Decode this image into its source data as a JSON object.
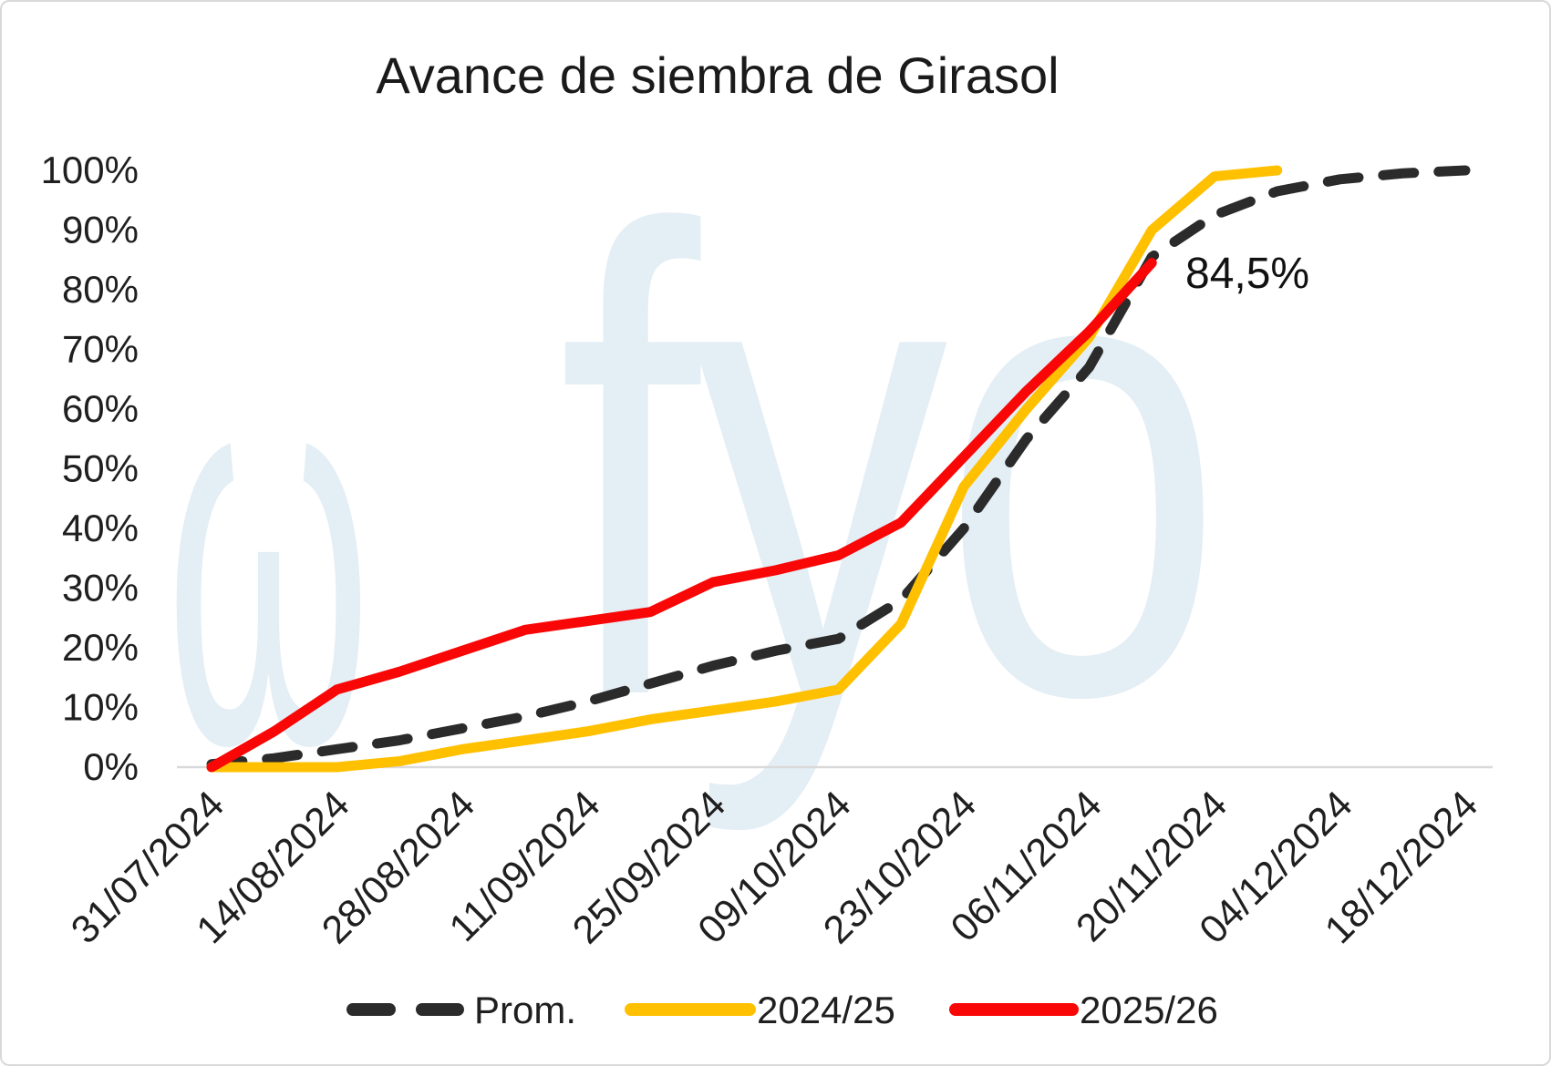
{
  "title": "Avance de siembra de Girasol",
  "watermark": {
    "glyph": "ω",
    "text": "fyo",
    "color": "#e4eef5"
  },
  "axis_color": "#d9d9d9",
  "text_color": "#1f1f1f",
  "chart_data": {
    "type": "line",
    "title": "Avance de siembra de Girasol",
    "x_weekly": [
      "31/07/2024",
      "07/08/2024",
      "14/08/2024",
      "21/08/2024",
      "28/08/2024",
      "04/09/2024",
      "11/09/2024",
      "18/09/2024",
      "25/09/2024",
      "02/10/2024",
      "09/10/2024",
      "16/10/2024",
      "23/10/2024",
      "30/10/2024",
      "06/11/2024",
      "13/11/2024",
      "20/11/2024",
      "27/11/2024",
      "04/12/2024",
      "11/12/2024",
      "18/12/2024"
    ],
    "x_tick_labels": [
      "31/07/2024",
      "14/08/2024",
      "28/08/2024",
      "11/09/2024",
      "25/09/2024",
      "09/10/2024",
      "23/10/2024",
      "06/11/2024",
      "20/11/2024",
      "04/12/2024",
      "18/12/2024"
    ],
    "x_tick_every": 2,
    "y_tick_labels": [
      "0%",
      "10%",
      "20%",
      "30%",
      "40%",
      "50%",
      "60%",
      "70%",
      "80%",
      "90%",
      "100%"
    ],
    "ylim": [
      0,
      100
    ],
    "ytick_step": 10,
    "grid": "baseline-only",
    "legend_position": "bottom",
    "series": [
      {
        "name": "Prom.",
        "color": "#2b2b2b",
        "dashed": true,
        "values": [
          0.5,
          1.5,
          3,
          4.5,
          6.5,
          8.5,
          11,
          14,
          17,
          19.5,
          21.5,
          28,
          40,
          55,
          67,
          85.5,
          92.5,
          96.5,
          98.5,
          99.5,
          100
        ]
      },
      {
        "name": "2024/25",
        "color": "#ffc000",
        "dashed": false,
        "values": [
          0,
          0,
          0,
          1,
          3,
          4.5,
          6,
          8,
          9.5,
          11,
          13,
          24,
          47,
          60,
          72,
          90,
          99,
          100,
          null,
          null,
          null
        ]
      },
      {
        "name": "2025/26",
        "color": "#f90606",
        "dashed": false,
        "values": [
          0,
          6,
          13,
          16,
          19.5,
          23,
          24.5,
          26,
          31,
          33,
          35.5,
          41,
          52,
          63,
          73,
          84.5,
          null,
          null,
          null,
          null,
          null
        ]
      }
    ],
    "annotation": {
      "text": "84,5%",
      "series": "2025/26",
      "x": "13/11/2024",
      "value": 84.5
    }
  }
}
